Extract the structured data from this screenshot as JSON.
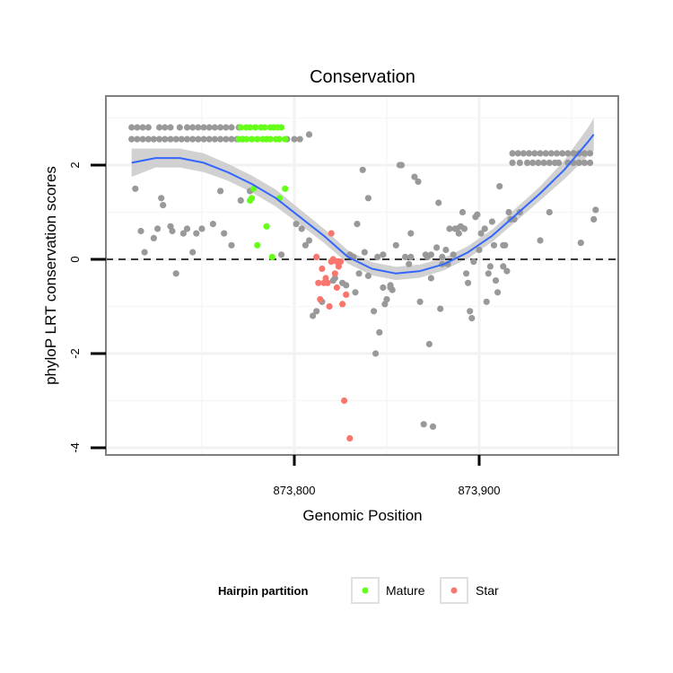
{
  "chart_data": {
    "type": "scatter",
    "title": "Conservation",
    "xlabel": "Genomic Position",
    "ylabel": "phyloP LRT conservation scores",
    "xlim": [
      873700,
      873980
    ],
    "ylim": [
      -4.2,
      3.5
    ],
    "x_ticks": [
      873800,
      873900
    ],
    "x_tick_labels": [
      "873,800",
      "873,900"
    ],
    "y_ticks": [
      -4,
      -2,
      0,
      2
    ],
    "y_tick_labels": [
      "-4",
      "-2",
      "0",
      "2"
    ],
    "reference_line": {
      "y": 0,
      "style": "dashed"
    },
    "colors": {
      "Other": "#999999",
      "Mature": "#66ff1a",
      "Star": "#f8766d",
      "smooth": "#3366ff",
      "ribbon": "#c9c9c9"
    },
    "legend": {
      "title": "Hairpin partition",
      "position": "bottom",
      "entries": [
        {
          "label": "Mature",
          "color": "#66ff1a"
        },
        {
          "label": "Star",
          "color": "#f8766d"
        }
      ]
    },
    "series": [
      {
        "name": "Other",
        "points": [
          [
            873712,
            2.8
          ],
          [
            873715,
            2.8
          ],
          [
            873718,
            2.8
          ],
          [
            873721,
            2.8
          ],
          [
            873727,
            2.8
          ],
          [
            873730,
            2.8
          ],
          [
            873733,
            2.8
          ],
          [
            873738,
            2.8
          ],
          [
            873742,
            2.8
          ],
          [
            873745,
            2.8
          ],
          [
            873748,
            2.8
          ],
          [
            873751,
            2.8
          ],
          [
            873754,
            2.8
          ],
          [
            873757,
            2.8
          ],
          [
            873760,
            2.8
          ],
          [
            873763,
            2.8
          ],
          [
            873766,
            2.8
          ],
          [
            873770,
            2.8
          ],
          [
            873712,
            2.55
          ],
          [
            873715,
            2.55
          ],
          [
            873718,
            2.55
          ],
          [
            873721,
            2.55
          ],
          [
            873724,
            2.55
          ],
          [
            873727,
            2.55
          ],
          [
            873730,
            2.55
          ],
          [
            873733,
            2.55
          ],
          [
            873736,
            2.55
          ],
          [
            873739,
            2.55
          ],
          [
            873742,
            2.55
          ],
          [
            873745,
            2.55
          ],
          [
            873748,
            2.55
          ],
          [
            873751,
            2.55
          ],
          [
            873754,
            2.55
          ],
          [
            873757,
            2.55
          ],
          [
            873760,
            2.55
          ],
          [
            873763,
            2.55
          ],
          [
            873766,
            2.55
          ],
          [
            873769,
            2.55
          ],
          [
            873772,
            2.55
          ],
          [
            873796,
            2.55
          ],
          [
            873800,
            2.55
          ],
          [
            873803,
            2.55
          ],
          [
            873808,
            2.65
          ],
          [
            873714,
            1.5
          ],
          [
            873717,
            0.6
          ],
          [
            873719,
            0.15
          ],
          [
            873724,
            0.45
          ],
          [
            873726,
            0.65
          ],
          [
            873728,
            1.3
          ],
          [
            873729,
            1.15
          ],
          [
            873733,
            0.7
          ],
          [
            873734,
            0.6
          ],
          [
            873736,
            -0.3
          ],
          [
            873740,
            0.55
          ],
          [
            873742,
            0.65
          ],
          [
            873745,
            0.15
          ],
          [
            873747,
            0.55
          ],
          [
            873750,
            0.65
          ],
          [
            873756,
            0.75
          ],
          [
            873760,
            1.45
          ],
          [
            873762,
            0.55
          ],
          [
            873766,
            0.3
          ],
          [
            873771,
            1.25
          ],
          [
            873776,
            1.45
          ],
          [
            873793,
            0.1
          ],
          [
            873801,
            0.75
          ],
          [
            873804,
            0.65
          ],
          [
            873806,
            0.3
          ],
          [
            873808,
            0.4
          ],
          [
            873810,
            -1.2
          ],
          [
            873812,
            -1.1
          ],
          [
            873815,
            -0.9
          ],
          [
            873821,
            -0.45
          ],
          [
            873822,
            -0.4
          ],
          [
            873826,
            -0.5
          ],
          [
            873828,
            -0.55
          ],
          [
            873830,
            0.1
          ],
          [
            873832,
            0.05
          ],
          [
            873833,
            -0.7
          ],
          [
            873834,
            0.75
          ],
          [
            873835,
            -0.3
          ],
          [
            873837,
            1.9
          ],
          [
            873838,
            0.15
          ],
          [
            873840,
            -0.35
          ],
          [
            873840,
            1.3
          ],
          [
            873843,
            -1.1
          ],
          [
            873844,
            -2.0
          ],
          [
            873845,
            0.05
          ],
          [
            873846,
            -1.55
          ],
          [
            873848,
            -0.6
          ],
          [
            873848,
            0.1
          ],
          [
            873849,
            -0.95
          ],
          [
            873850,
            -0.85
          ],
          [
            873852,
            -0.55
          ],
          [
            873852,
            -0.6
          ],
          [
            873853,
            -0.65
          ],
          [
            873855,
            0.3
          ],
          [
            873857,
            2.0
          ],
          [
            873858,
            2.0
          ],
          [
            873860,
            0.05
          ],
          [
            873862,
            -0.1
          ],
          [
            873863,
            0.55
          ],
          [
            873863,
            0.05
          ],
          [
            873865,
            1.75
          ],
          [
            873867,
            1.65
          ],
          [
            873868,
            -0.9
          ],
          [
            873870,
            -3.5
          ],
          [
            873871,
            0.1
          ],
          [
            873872,
            0.05
          ],
          [
            873873,
            -1.8
          ],
          [
            873874,
            -0.4
          ],
          [
            873874,
            0.1
          ],
          [
            873875,
            -3.55
          ],
          [
            873877,
            0.25
          ],
          [
            873878,
            1.2
          ],
          [
            873879,
            -1.05
          ],
          [
            873880,
            -0.1
          ],
          [
            873880,
            0.05
          ],
          [
            873882,
            0.2
          ],
          [
            873883,
            -0.1
          ],
          [
            873884,
            0.65
          ],
          [
            873886,
            0.1
          ],
          [
            873887,
            0.65
          ],
          [
            873888,
            0.65
          ],
          [
            873889,
            0.55
          ],
          [
            873890,
            0.7
          ],
          [
            873891,
            1.0
          ],
          [
            873892,
            0.65
          ],
          [
            873893,
            -0.3
          ],
          [
            873894,
            -0.5
          ],
          [
            873895,
            -1.1
          ],
          [
            873896,
            -1.25
          ],
          [
            873897,
            -0.05
          ],
          [
            873898,
            0.9
          ],
          [
            873899,
            0.95
          ],
          [
            873900,
            0.2
          ],
          [
            873901,
            0.55
          ],
          [
            873903,
            0.65
          ],
          [
            873904,
            -0.9
          ],
          [
            873905,
            -0.3
          ],
          [
            873906,
            -0.15
          ],
          [
            873907,
            0.8
          ],
          [
            873908,
            0.3
          ],
          [
            873909,
            -0.45
          ],
          [
            873910,
            -0.7
          ],
          [
            873911,
            1.55
          ],
          [
            873913,
            -0.15
          ],
          [
            873913,
            0.3
          ],
          [
            873914,
            0.3
          ],
          [
            873915,
            -0.25
          ],
          [
            873916,
            1.0
          ],
          [
            873917,
            0.85
          ],
          [
            873919,
            0.85
          ],
          [
            873922,
            1.0
          ],
          [
            873933,
            0.4
          ],
          [
            873938,
            1.0
          ],
          [
            873955,
            0.35
          ],
          [
            873962,
            0.85
          ],
          [
            873963,
            1.05
          ],
          [
            873918,
            2.25
          ],
          [
            873921,
            2.25
          ],
          [
            873924,
            2.25
          ],
          [
            873927,
            2.25
          ],
          [
            873930,
            2.25
          ],
          [
            873933,
            2.25
          ],
          [
            873936,
            2.25
          ],
          [
            873939,
            2.25
          ],
          [
            873942,
            2.25
          ],
          [
            873945,
            2.25
          ],
          [
            873948,
            2.25
          ],
          [
            873951,
            2.25
          ],
          [
            873954,
            2.25
          ],
          [
            873957,
            2.25
          ],
          [
            873960,
            2.25
          ],
          [
            873918,
            2.05
          ],
          [
            873922,
            2.05
          ],
          [
            873926,
            2.05
          ],
          [
            873929,
            2.05
          ],
          [
            873932,
            2.05
          ],
          [
            873935,
            2.05
          ],
          [
            873938,
            2.05
          ],
          [
            873941,
            2.05
          ],
          [
            873943,
            2.05
          ],
          [
            873948,
            2.05
          ],
          [
            873951,
            2.05
          ],
          [
            873954,
            2.05
          ],
          [
            873957,
            2.05
          ],
          [
            873960,
            2.05
          ]
        ]
      },
      {
        "name": "Mature",
        "points": [
          [
            873771,
            2.8
          ],
          [
            873774,
            2.8
          ],
          [
            873776,
            2.8
          ],
          [
            873779,
            2.8
          ],
          [
            873782,
            2.8
          ],
          [
            873784,
            2.8
          ],
          [
            873787,
            2.8
          ],
          [
            873789,
            2.8
          ],
          [
            873791,
            2.8
          ],
          [
            873793,
            2.8
          ],
          [
            873770,
            2.55
          ],
          [
            873772,
            2.55
          ],
          [
            873774,
            2.55
          ],
          [
            873777,
            2.55
          ],
          [
            873780,
            2.55
          ],
          [
            873783,
            2.55
          ],
          [
            873785,
            2.55
          ],
          [
            873787,
            2.55
          ],
          [
            873790,
            2.55
          ],
          [
            873792,
            2.55
          ],
          [
            873795,
            2.55
          ],
          [
            873776,
            1.25
          ],
          [
            873777,
            1.3
          ],
          [
            873778,
            1.5
          ],
          [
            873780,
            0.3
          ],
          [
            873785,
            0.7
          ],
          [
            873788,
            0.05
          ],
          [
            873792,
            1.3
          ],
          [
            873795,
            1.5
          ]
        ]
      },
      {
        "name": "Star",
        "points": [
          [
            873812,
            0.05
          ],
          [
            873813,
            -0.5
          ],
          [
            873814,
            -0.85
          ],
          [
            873815,
            -0.2
          ],
          [
            873816,
            -0.5
          ],
          [
            873817,
            -0.4
          ],
          [
            873818,
            -0.5
          ],
          [
            873819,
            -1.0
          ],
          [
            873820,
            0.55
          ],
          [
            873820,
            -0.05
          ],
          [
            873821,
            0.0
          ],
          [
            873822,
            -0.3
          ],
          [
            873823,
            -0.6
          ],
          [
            873823,
            -0.05
          ],
          [
            873824,
            -0.15
          ],
          [
            873825,
            -0.05
          ],
          [
            873826,
            -0.95
          ],
          [
            873827,
            -3.0
          ],
          [
            873828,
            -0.75
          ],
          [
            873830,
            -3.8
          ]
        ]
      }
    ],
    "smooth": {
      "method": "loess",
      "x": [
        873712,
        873725,
        873738,
        873751,
        873764,
        873777,
        873790,
        873803,
        873816,
        873829,
        873842,
        873855,
        873868,
        873881,
        873894,
        873907,
        873920,
        873933,
        873946,
        873959,
        873962
      ],
      "y": [
        2.05,
        2.15,
        2.15,
        2.05,
        1.85,
        1.6,
        1.3,
        0.9,
        0.5,
        0.05,
        -0.2,
        -0.3,
        -0.25,
        -0.1,
        0.15,
        0.5,
        0.95,
        1.4,
        1.9,
        2.5,
        2.65
      ],
      "se": [
        0.3,
        0.2,
        0.2,
        0.2,
        0.18,
        0.18,
        0.18,
        0.16,
        0.15,
        0.14,
        0.14,
        0.14,
        0.14,
        0.13,
        0.13,
        0.13,
        0.14,
        0.15,
        0.2,
        0.3,
        0.35
      ]
    }
  }
}
